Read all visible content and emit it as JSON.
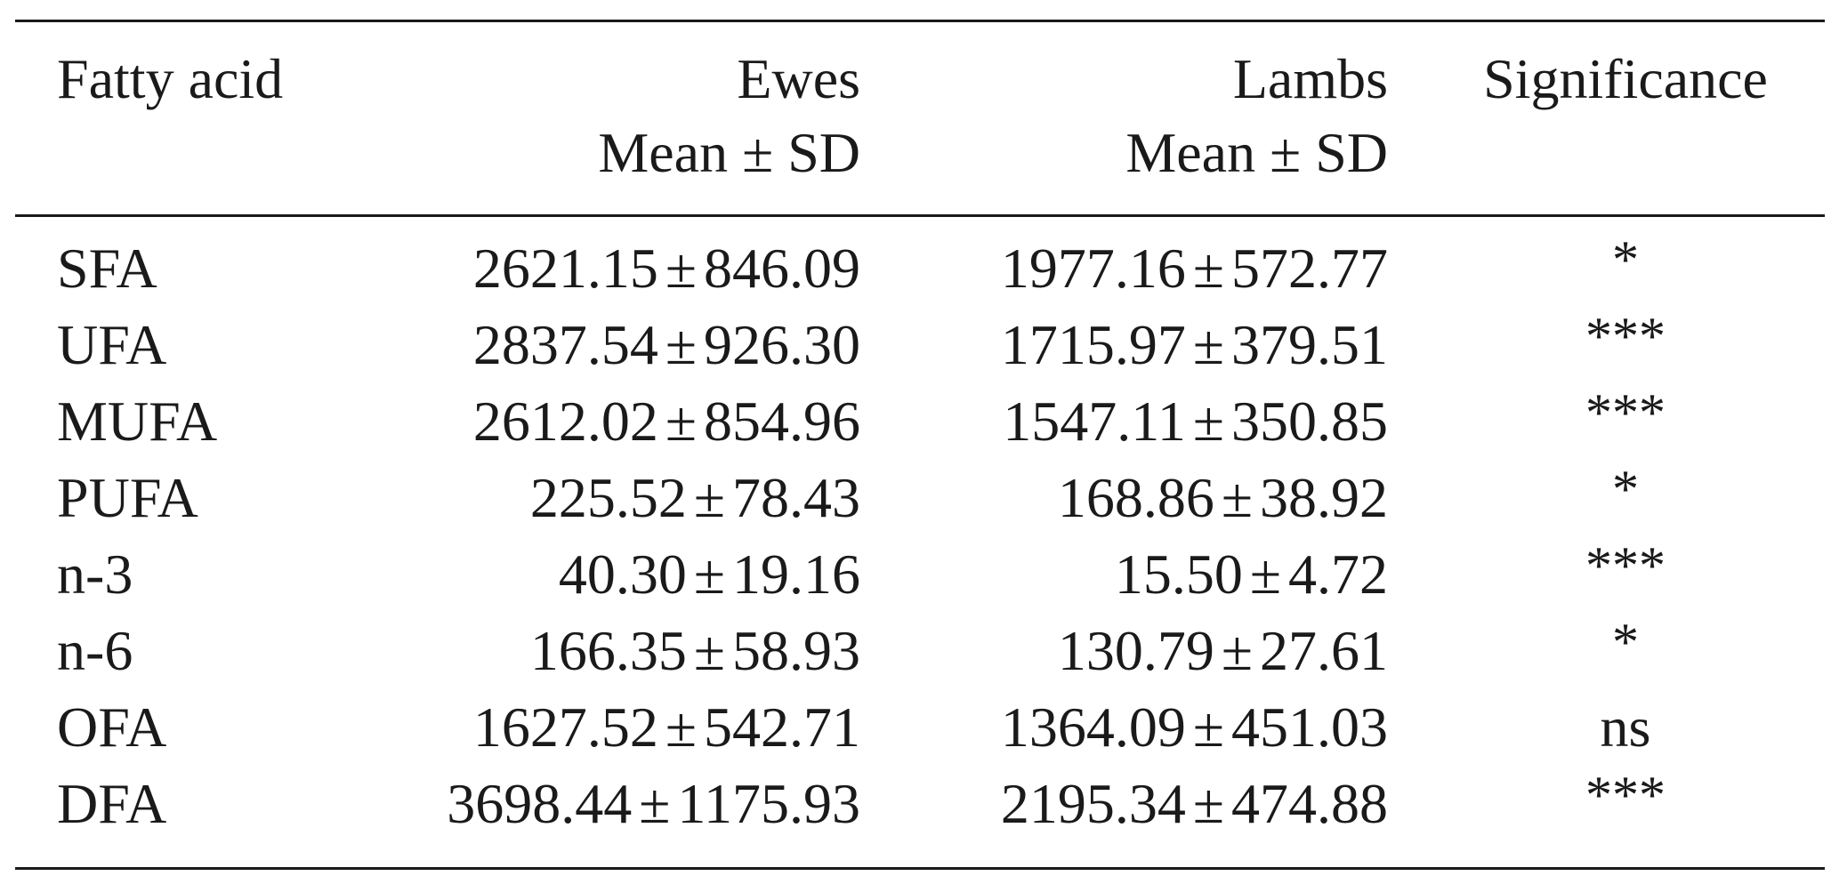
{
  "table": {
    "header": {
      "col1": "Fatty acid",
      "col2_line1": "Ewes",
      "col2_line2": "Mean ± SD",
      "col3_line1": "Lambs",
      "col3_line2": "Mean ± SD",
      "col4": "Significance"
    },
    "rows": [
      {
        "name": "SFA",
        "ewes_mean": "2621.15",
        "ewes_sd": "846.09",
        "lambs_mean": "1977.16",
        "lambs_sd": "572.77",
        "sig": "*"
      },
      {
        "name": "UFA",
        "ewes_mean": "2837.54",
        "ewes_sd": "926.30",
        "lambs_mean": "1715.97",
        "lambs_sd": "379.51",
        "sig": "***"
      },
      {
        "name": "MUFA",
        "ewes_mean": "2612.02",
        "ewes_sd": "854.96",
        "lambs_mean": "1547.11",
        "lambs_sd": "350.85",
        "sig": "***"
      },
      {
        "name": "PUFA",
        "ewes_mean": "225.52",
        "ewes_sd": "78.43",
        "lambs_mean": "168.86",
        "lambs_sd": "38.92",
        "sig": "*"
      },
      {
        "name": "n-3",
        "ewes_mean": "40.30",
        "ewes_sd": "19.16",
        "lambs_mean": "15.50",
        "lambs_sd": "4.72",
        "sig": "***"
      },
      {
        "name": "n-6",
        "ewes_mean": "166.35",
        "ewes_sd": "58.93",
        "lambs_mean": "130.79",
        "lambs_sd": "27.61",
        "sig": "*"
      },
      {
        "name": "OFA",
        "ewes_mean": "1627.52",
        "ewes_sd": "542.71",
        "lambs_mean": "1364.09",
        "lambs_sd": "451.03",
        "sig": "ns"
      },
      {
        "name": "DFA",
        "ewes_mean": "3698.44",
        "ewes_sd": "1175.93",
        "lambs_mean": "2195.34",
        "lambs_sd": "474.88",
        "sig": "***"
      }
    ],
    "pm_symbol": "±"
  }
}
